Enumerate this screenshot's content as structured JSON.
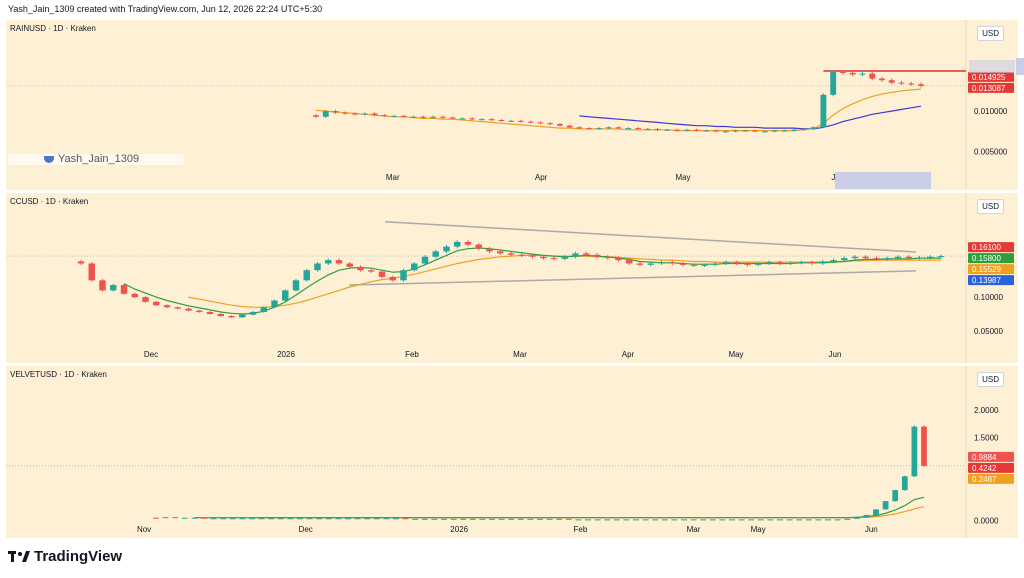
{
  "header": {
    "text": "Yash_Jain_1309 created with TradingView.com, Jun 12, 2026 22:24 UTC+5:30"
  },
  "footer": {
    "brand": "TradingView"
  },
  "watermark": {
    "text": "Yash_Jain_1309"
  },
  "colors": {
    "up": "#26a69a",
    "down": "#ef5350",
    "ma_fast": "#2e9e3f",
    "ma_slow": "#f0a020",
    "ma_blue": "#3a3ad0",
    "resistance": "#e03030",
    "trendline": "#aaaaaa",
    "panel_bg": "#fdf0d5"
  },
  "chart_data": [
    {
      "type": "candlestick",
      "title": "RAINUSD · 1D · Kraken",
      "currency": "USD",
      "x_ticks": [
        "Mar",
        "Apr",
        "May",
        "Jun"
      ],
      "y_ticks": [
        "0.010000",
        "0.005000"
      ],
      "ylim": [
        0.0025,
        0.0185
      ],
      "price_labels": [
        {
          "value": "0.014925",
          "color": "#e53935"
        },
        {
          "value": "0.013087",
          "color": "#e53935"
        }
      ],
      "resistance_level": 0.014925,
      "closes": [
        0.0093,
        0.01,
        0.0098,
        0.0097,
        0.0096,
        0.0097,
        0.0095,
        0.0094,
        0.0094,
        0.0093,
        0.0093,
        0.0092,
        0.0093,
        0.0092,
        0.0091,
        0.0091,
        0.009,
        0.009,
        0.0089,
        0.0088,
        0.0088,
        0.0087,
        0.0086,
        0.0085,
        0.0084,
        0.0082,
        0.008,
        0.0079,
        0.0078,
        0.0079,
        0.008,
        0.0079,
        0.0079,
        0.0078,
        0.0078,
        0.0077,
        0.0077,
        0.0076,
        0.0077,
        0.0076,
        0.0076,
        0.0075,
        0.0075,
        0.0076,
        0.0076,
        0.0075,
        0.0075,
        0.0076,
        0.0076,
        0.0077,
        0.0078,
        0.008,
        0.012,
        0.0148,
        0.0147,
        0.0145,
        0.0146,
        0.014,
        0.0138,
        0.0135,
        0.0134,
        0.0133,
        0.0131
      ],
      "ma_fast": [
        0.0101,
        0.01,
        0.0099,
        0.0098,
        0.0097,
        0.0096,
        0.0095,
        0.0094,
        0.0093,
        0.0093,
        0.0092,
        0.0091,
        0.0091,
        0.009,
        0.009,
        0.0089,
        0.0088,
        0.0087,
        0.0086,
        0.0085,
        0.0084,
        0.0083,
        0.0082,
        0.0081,
        0.008,
        0.0079,
        0.0079,
        0.0078,
        0.0078,
        0.0078,
        0.0078,
        0.0078,
        0.0077,
        0.0077,
        0.0077,
        0.0077,
        0.0077,
        0.0076,
        0.0076,
        0.0076,
        0.0076,
        0.0076,
        0.0076,
        0.0076,
        0.0076,
        0.0076,
        0.0076,
        0.0076,
        0.0076,
        0.0076,
        0.0077,
        0.0078,
        0.0085,
        0.0095,
        0.0103,
        0.0109,
        0.0114,
        0.0118,
        0.0121,
        0.0123,
        0.0125,
        0.0126,
        0.0127
      ],
      "ma_blue": [
        null,
        null,
        null,
        null,
        null,
        null,
        null,
        null,
        null,
        null,
        null,
        null,
        null,
        null,
        null,
        null,
        null,
        null,
        null,
        null,
        null,
        null,
        null,
        null,
        null,
        null,
        null,
        0.0094,
        0.0093,
        0.0092,
        0.0091,
        0.009,
        0.0089,
        0.0088,
        0.0087,
        0.0086,
        0.0085,
        0.0084,
        0.0083,
        0.0082,
        0.0082,
        0.0081,
        0.0081,
        0.008,
        0.008,
        0.008,
        0.0079,
        0.0079,
        0.0079,
        0.0079,
        0.0078,
        0.0078,
        0.008,
        0.0083,
        0.0087,
        0.009,
        0.0093,
        0.0096,
        0.0098,
        0.01,
        0.0102,
        0.0104,
        0.0106
      ]
    },
    {
      "type": "candlestick",
      "title": "CCUSD · 1D · Kraken",
      "currency": "USD",
      "x_ticks": [
        "Dec",
        "2026",
        "Feb",
        "Mar",
        "Apr",
        "May",
        "Jun"
      ],
      "y_ticks": [
        "0.10000",
        "0.05000"
      ],
      "ylim": [
        0.02,
        0.225
      ],
      "price_labels": [
        {
          "value": "0.16100",
          "color": "#e53935"
        },
        {
          "value": "0.15800",
          "color": "#2e9e3f"
        },
        {
          "value": "0.15529",
          "color": "#f0a020"
        },
        {
          "value": "0.13987",
          "color": "#2a62d9"
        }
      ],
      "closes": [
        0.15,
        0.125,
        0.11,
        0.118,
        0.105,
        0.1,
        0.093,
        0.088,
        0.085,
        0.083,
        0.08,
        0.078,
        0.075,
        0.072,
        0.07,
        0.074,
        0.078,
        0.085,
        0.095,
        0.11,
        0.125,
        0.14,
        0.15,
        0.155,
        0.15,
        0.145,
        0.14,
        0.138,
        0.13,
        0.125,
        0.14,
        0.15,
        0.16,
        0.168,
        0.175,
        0.182,
        0.178,
        0.172,
        0.168,
        0.165,
        0.163,
        0.162,
        0.16,
        0.158,
        0.157,
        0.16,
        0.165,
        0.163,
        0.16,
        0.158,
        0.155,
        0.15,
        0.148,
        0.15,
        0.152,
        0.15,
        0.148,
        0.147,
        0.148,
        0.15,
        0.152,
        0.15,
        0.148,
        0.15,
        0.152,
        0.15,
        0.151,
        0.152,
        0.15,
        0.153,
        0.155,
        0.158,
        0.16,
        0.158,
        0.156,
        0.158,
        0.16,
        0.158,
        0.159,
        0.16,
        0.161
      ],
      "ma_fast": [
        null,
        null,
        null,
        null,
        0.12,
        0.112,
        0.106,
        0.1,
        0.095,
        0.091,
        0.087,
        0.084,
        0.081,
        0.078,
        0.076,
        0.075,
        0.076,
        0.079,
        0.085,
        0.093,
        0.103,
        0.114,
        0.124,
        0.133,
        0.14,
        0.143,
        0.144,
        0.143,
        0.14,
        0.137,
        0.138,
        0.142,
        0.148,
        0.155,
        0.162,
        0.169,
        0.172,
        0.173,
        0.172,
        0.17,
        0.168,
        0.166,
        0.164,
        0.162,
        0.161,
        0.16,
        0.161,
        0.162,
        0.161,
        0.16,
        0.158,
        0.156,
        0.153,
        0.152,
        0.151,
        0.151,
        0.15,
        0.149,
        0.149,
        0.149,
        0.15,
        0.15,
        0.15,
        0.15,
        0.15,
        0.15,
        0.15,
        0.151,
        0.151,
        0.151,
        0.152,
        0.153,
        0.155,
        0.156,
        0.156,
        0.157,
        0.157,
        0.157,
        0.158,
        0.158,
        0.158
      ],
      "ma_slow": [
        null,
        null,
        null,
        null,
        null,
        null,
        null,
        null,
        null,
        null,
        0.1,
        0.097,
        0.094,
        0.091,
        0.088,
        0.086,
        0.085,
        0.085,
        0.086,
        0.088,
        0.091,
        0.095,
        0.1,
        0.105,
        0.11,
        0.115,
        0.119,
        0.123,
        0.126,
        0.128,
        0.131,
        0.134,
        0.138,
        0.142,
        0.146,
        0.15,
        0.153,
        0.156,
        0.158,
        0.16,
        0.161,
        0.162,
        0.162,
        0.162,
        0.161,
        0.161,
        0.161,
        0.161,
        0.16,
        0.16,
        0.159,
        0.158,
        0.157,
        0.156,
        0.155,
        0.155,
        0.154,
        0.153,
        0.153,
        0.152,
        0.152,
        0.152,
        0.152,
        0.152,
        0.152,
        0.152,
        0.152,
        0.152,
        0.152,
        0.152,
        0.153,
        0.153,
        0.154,
        0.154,
        0.155,
        0.155,
        0.155,
        0.155,
        0.155,
        0.155,
        0.155
      ],
      "trendline_upper": [
        [
          0.36,
          0.212
        ],
        [
          0.95,
          0.167
        ]
      ],
      "trendline_lower": [
        [
          0.32,
          0.118
        ],
        [
          0.95,
          0.139
        ]
      ]
    },
    {
      "type": "candlestick",
      "title": "VELVETUSD · 1D · Kraken",
      "currency": "USD",
      "x_ticks": [
        "Nov",
        "Dec",
        "2026",
        "Feb",
        "Mar",
        "May",
        "Jun"
      ],
      "y_ticks": [
        "2.0000",
        "1.5000",
        "0.0000"
      ],
      "ylim": [
        -0.1,
        2.4
      ],
      "price_labels": [
        {
          "value": "0.9884",
          "color": "#ef5350"
        },
        {
          "value": "0.4242",
          "color": "#e53935"
        },
        {
          "value": "0.2487",
          "color": "#f0a020"
        }
      ],
      "closes": [
        0.05,
        0.06,
        0.05,
        0.05,
        0.05,
        0.04,
        0.04,
        0.04,
        0.04,
        0.04,
        0.04,
        0.04,
        0.04,
        0.04,
        0.04,
        0.04,
        0.04,
        0.04,
        0.04,
        0.04,
        0.04,
        0.04,
        0.04,
        0.04,
        0.04,
        0.04,
        0.03,
        0.03,
        0.03,
        0.03,
        0.03,
        0.03,
        0.03,
        0.03,
        0.03,
        0.03,
        0.03,
        0.03,
        0.03,
        0.03,
        0.03,
        0.03,
        0.03,
        0.02,
        0.02,
        0.02,
        0.02,
        0.02,
        0.02,
        0.02,
        0.02,
        0.02,
        0.02,
        0.02,
        0.02,
        0.02,
        0.02,
        0.02,
        0.02,
        0.02,
        0.02,
        0.02,
        0.02,
        0.02,
        0.02,
        0.02,
        0.02,
        0.02,
        0.02,
        0.02,
        0.02,
        0.02,
        0.03,
        0.05,
        0.1,
        0.2,
        0.35,
        0.55,
        0.8,
        1.7,
        0.99
      ],
      "ma_fast": [
        null,
        null,
        null,
        null,
        0.05,
        0.05,
        0.05,
        0.05,
        0.05,
        0.05,
        0.05,
        0.05,
        0.05,
        0.05,
        0.05,
        0.05,
        0.05,
        0.05,
        0.05,
        0.05,
        0.05,
        0.05,
        0.05,
        0.05,
        0.05,
        0.05,
        0.05,
        0.05,
        0.05,
        0.05,
        0.05,
        0.05,
        0.05,
        0.05,
        0.05,
        0.05,
        0.05,
        0.05,
        0.05,
        0.05,
        0.05,
        0.05,
        0.05,
        0.05,
        0.05,
        0.05,
        0.05,
        0.05,
        0.05,
        0.05,
        0.05,
        0.05,
        0.05,
        0.05,
        0.05,
        0.05,
        0.05,
        0.05,
        0.05,
        0.05,
        0.05,
        0.05,
        0.05,
        0.05,
        0.05,
        0.05,
        0.05,
        0.05,
        0.05,
        0.05,
        0.05,
        0.05,
        0.05,
        0.06,
        0.07,
        0.09,
        0.13,
        0.19,
        0.27,
        0.38,
        0.42
      ],
      "ma_slow": [
        null,
        null,
        null,
        null,
        null,
        null,
        null,
        null,
        null,
        null,
        0.05,
        0.05,
        0.05,
        0.05,
        0.05,
        0.05,
        0.05,
        0.05,
        0.05,
        0.05,
        0.05,
        0.05,
        0.05,
        0.05,
        0.05,
        0.05,
        0.05,
        0.05,
        0.05,
        0.05,
        0.05,
        0.05,
        0.05,
        0.05,
        0.05,
        0.05,
        0.05,
        0.05,
        0.05,
        0.05,
        0.05,
        0.05,
        0.05,
        0.05,
        0.05,
        0.05,
        0.05,
        0.05,
        0.05,
        0.05,
        0.05,
        0.05,
        0.05,
        0.05,
        0.05,
        0.05,
        0.05,
        0.05,
        0.05,
        0.05,
        0.05,
        0.05,
        0.05,
        0.05,
        0.05,
        0.05,
        0.05,
        0.05,
        0.05,
        0.05,
        0.05,
        0.05,
        0.05,
        0.05,
        0.06,
        0.07,
        0.09,
        0.12,
        0.16,
        0.21,
        0.25
      ]
    }
  ]
}
